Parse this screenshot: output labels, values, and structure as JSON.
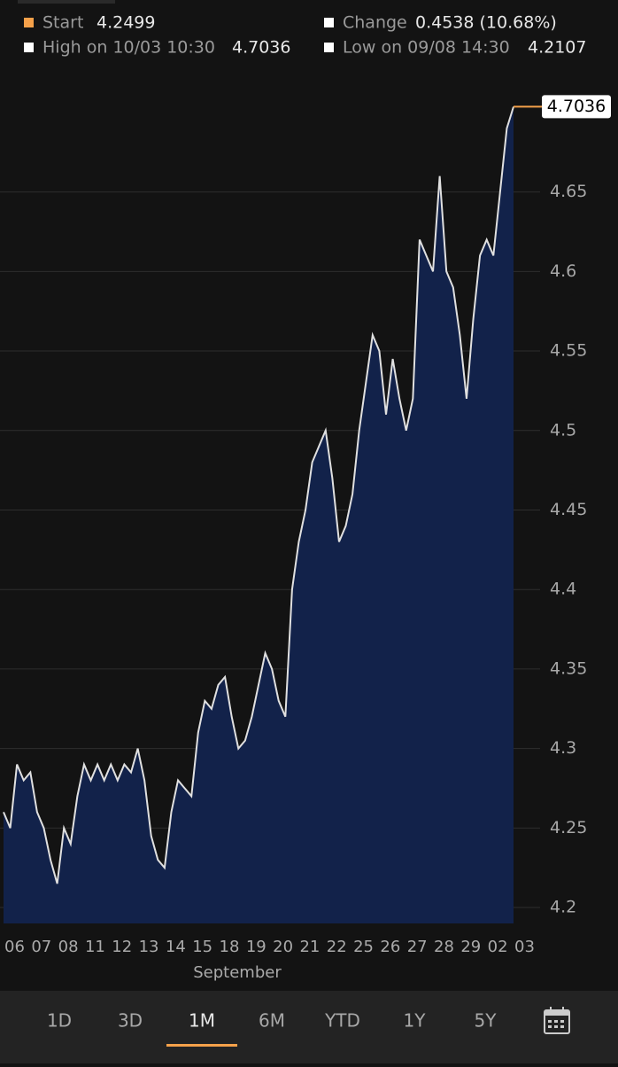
{
  "header": {
    "start_label": "Start",
    "start_value": 4.2499,
    "change_label": "Change",
    "change_value": "0.4538 (10.68%)",
    "high_label": "High on 10/03 10:30",
    "high_value": 4.7036,
    "low_label": "Low on 09/08 14:30",
    "low_value": 4.2107
  },
  "chart_data": {
    "type": "area",
    "x_label": "September",
    "categories": [
      "06",
      null,
      null,
      null,
      "07",
      null,
      null,
      null,
      "08",
      null,
      null,
      null,
      "11",
      null,
      null,
      null,
      "12",
      null,
      null,
      null,
      "13",
      null,
      null,
      null,
      "14",
      null,
      null,
      null,
      "15",
      null,
      null,
      null,
      "18",
      null,
      null,
      null,
      "19",
      null,
      null,
      null,
      "20",
      null,
      null,
      null,
      "21",
      null,
      null,
      null,
      "22",
      null,
      null,
      null,
      "25",
      null,
      null,
      null,
      "26",
      null,
      null,
      null,
      "27",
      null,
      null,
      null,
      "28",
      null,
      null,
      null,
      "29",
      null,
      null,
      null,
      "02",
      null,
      null,
      null,
      "03"
    ],
    "values": [
      4.26,
      4.25,
      4.29,
      4.28,
      4.285,
      4.26,
      4.25,
      4.23,
      4.215,
      4.25,
      4.24,
      4.27,
      4.29,
      4.28,
      4.29,
      4.28,
      4.29,
      4.28,
      4.29,
      4.285,
      4.3,
      4.28,
      4.245,
      4.23,
      4.225,
      4.26,
      4.28,
      4.275,
      4.27,
      4.31,
      4.33,
      4.325,
      4.34,
      4.345,
      4.32,
      4.3,
      4.305,
      4.32,
      4.34,
      4.36,
      4.35,
      4.33,
      4.32,
      4.4,
      4.43,
      4.45,
      4.48,
      4.49,
      4.5,
      4.47,
      4.43,
      4.44,
      4.46,
      4.5,
      4.53,
      4.56,
      4.55,
      4.51,
      4.545,
      4.52,
      4.5,
      4.52,
      4.62,
      4.61,
      4.6,
      4.66,
      4.6,
      4.59,
      4.56,
      4.52,
      4.57,
      4.61,
      4.62,
      4.61,
      4.65,
      4.69,
      4.7036
    ],
    "current_value": 4.7036,
    "line_color": "#e0e0e0",
    "fill_color": "#12224a",
    "marker_color": "#f5a14a",
    "ylim": [
      4.19,
      4.72
    ],
    "yticks": [
      4.2,
      4.25,
      4.3,
      4.35,
      4.4,
      4.45,
      4.5,
      4.55,
      4.6,
      4.65
    ],
    "grid": true
  },
  "tabs": [
    "1D",
    "3D",
    "1M",
    "6M",
    "YTD",
    "1Y",
    "5Y"
  ],
  "selected_tab": "1M"
}
